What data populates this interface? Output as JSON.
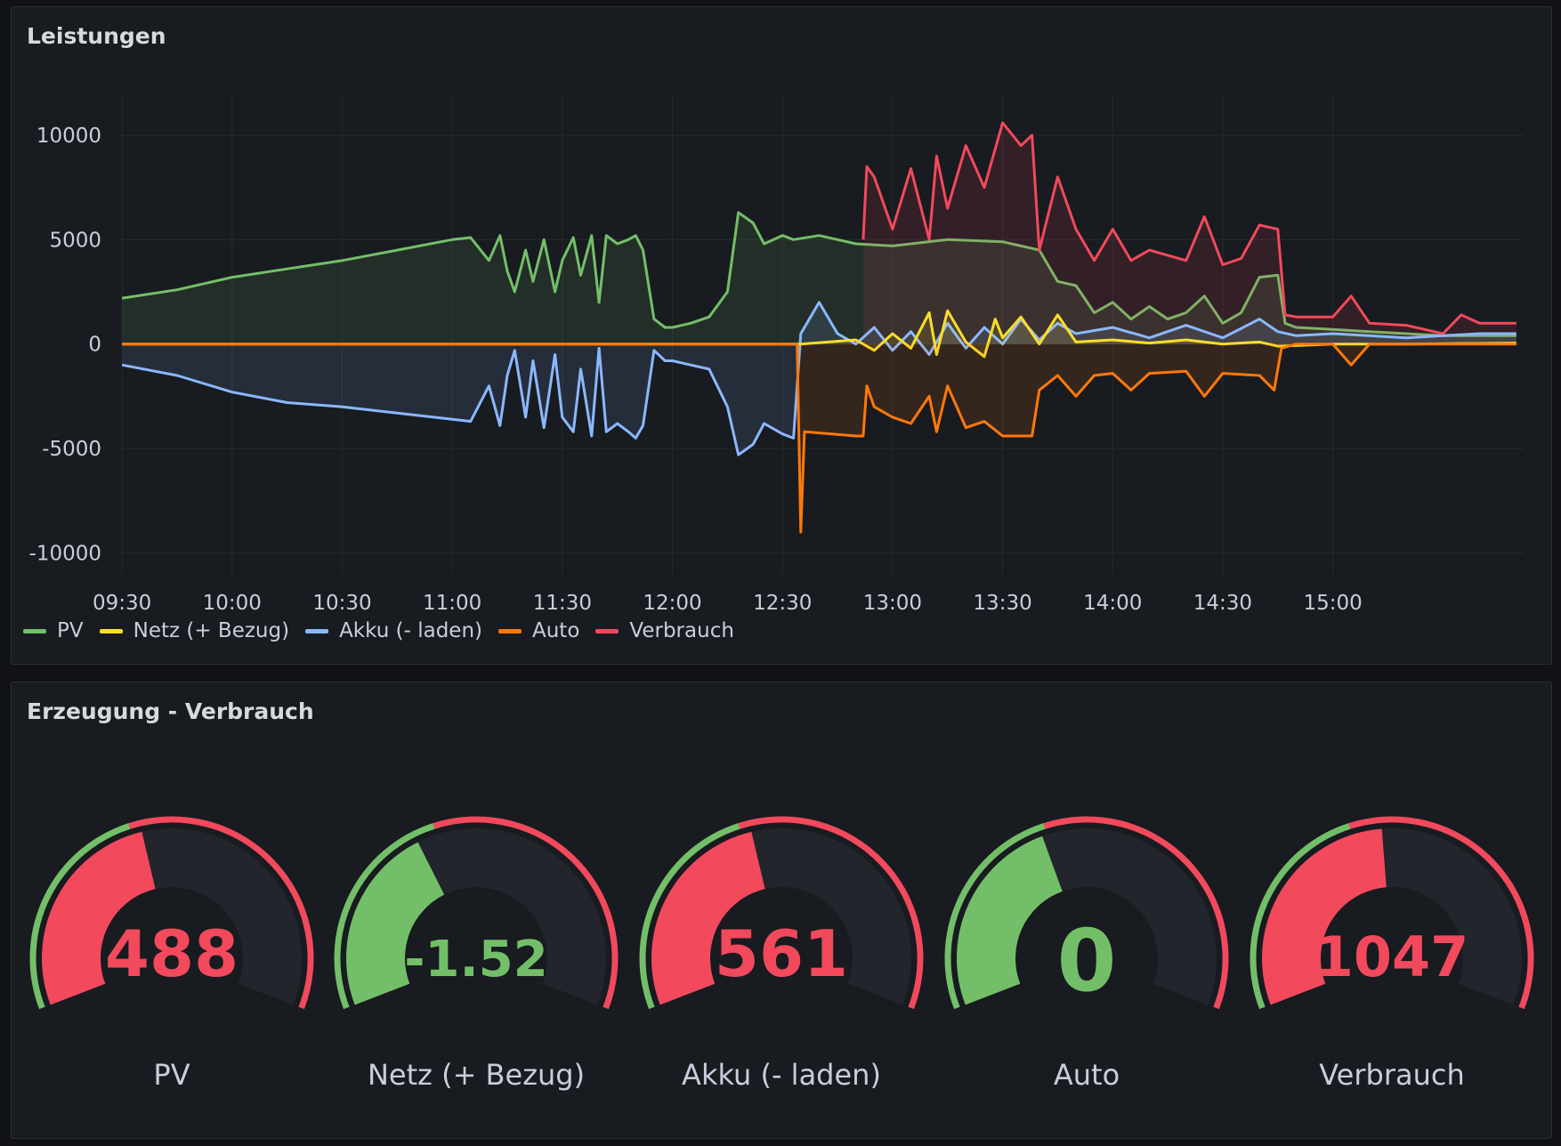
{
  "panels": {
    "top_title": "Leistungen",
    "bottom_title": "Erzeugung - Verbrauch"
  },
  "chart_data": [
    {
      "type": "area",
      "title": "Leistungen",
      "x_ticks": [
        "09:30",
        "10:00",
        "10:30",
        "11:00",
        "11:30",
        "12:00",
        "12:30",
        "13:00",
        "13:30",
        "14:00",
        "14:30",
        "15:00"
      ],
      "xlim": [
        "09:30",
        "15:50"
      ],
      "y_ticks": [
        10000,
        5000,
        0,
        -5000,
        -10000
      ],
      "ylim": [
        -10000,
        12000
      ],
      "grid": true,
      "legend_position": "bottom-left",
      "series": [
        {
          "name": "PV",
          "color": "#73bf69",
          "points": [
            [
              "09:30",
              2200
            ],
            [
              "09:45",
              2600
            ],
            [
              "10:00",
              3200
            ],
            [
              "10:15",
              3600
            ],
            [
              "10:30",
              4000
            ],
            [
              "10:45",
              4500
            ],
            [
              "11:00",
              5000
            ],
            [
              "11:05",
              5100
            ],
            [
              "11:10",
              4000
            ],
            [
              "11:13",
              5200
            ],
            [
              "11:15",
              3500
            ],
            [
              "11:17",
              2500
            ],
            [
              "11:20",
              4500
            ],
            [
              "11:22",
              3000
            ],
            [
              "11:25",
              5000
            ],
            [
              "11:28",
              2500
            ],
            [
              "11:30",
              4000
            ],
            [
              "11:33",
              5100
            ],
            [
              "11:35",
              3300
            ],
            [
              "11:38",
              5200
            ],
            [
              "11:40",
              2000
            ],
            [
              "11:42",
              5200
            ],
            [
              "11:45",
              4800
            ],
            [
              "11:48",
              5000
            ],
            [
              "11:50",
              5200
            ],
            [
              "11:52",
              4500
            ],
            [
              "11:55",
              1200
            ],
            [
              "11:58",
              800
            ],
            [
              "12:00",
              800
            ],
            [
              "12:05",
              1000
            ],
            [
              "12:10",
              1300
            ],
            [
              "12:15",
              2500
            ],
            [
              "12:18",
              6300
            ],
            [
              "12:22",
              5800
            ],
            [
              "12:25",
              4800
            ],
            [
              "12:30",
              5200
            ],
            [
              "12:33",
              5000
            ],
            [
              "12:40",
              5200
            ],
            [
              "12:45",
              5000
            ],
            [
              "12:50",
              4800
            ],
            [
              "13:00",
              4700
            ],
            [
              "13:15",
              5000
            ],
            [
              "13:30",
              4900
            ],
            [
              "13:40",
              4500
            ],
            [
              "13:45",
              3000
            ],
            [
              "13:50",
              2800
            ],
            [
              "13:55",
              1500
            ],
            [
              "14:00",
              2000
            ],
            [
              "14:05",
              1200
            ],
            [
              "14:10",
              1800
            ],
            [
              "14:15",
              1200
            ],
            [
              "14:20",
              1500
            ],
            [
              "14:25",
              2300
            ],
            [
              "14:30",
              1000
            ],
            [
              "14:35",
              1500
            ],
            [
              "14:40",
              3200
            ],
            [
              "14:45",
              3300
            ],
            [
              "14:47",
              1000
            ],
            [
              "14:50",
              800
            ],
            [
              "15:00",
              700
            ],
            [
              "15:10",
              600
            ],
            [
              "15:20",
              500
            ],
            [
              "15:30",
              400
            ],
            [
              "15:40",
              400
            ],
            [
              "15:50",
              400
            ]
          ]
        },
        {
          "name": "Netz (+ Bezug)",
          "color": "#fade2a",
          "points": [
            [
              "09:30",
              0
            ],
            [
              "12:30",
              0
            ],
            [
              "12:35",
              0
            ],
            [
              "12:50",
              200
            ],
            [
              "12:55",
              -300
            ],
            [
              "13:00",
              500
            ],
            [
              "13:05",
              -200
            ],
            [
              "13:10",
              1500
            ],
            [
              "13:12",
              -500
            ],
            [
              "13:15",
              1600
            ],
            [
              "13:20",
              100
            ],
            [
              "13:25",
              -600
            ],
            [
              "13:28",
              1200
            ],
            [
              "13:30",
              300
            ],
            [
              "13:35",
              1300
            ],
            [
              "13:40",
              0
            ],
            [
              "13:45",
              1400
            ],
            [
              "13:50",
              100
            ],
            [
              "14:00",
              200
            ],
            [
              "14:10",
              50
            ],
            [
              "14:20",
              200
            ],
            [
              "14:30",
              0
            ],
            [
              "14:40",
              100
            ],
            [
              "14:45",
              -100
            ],
            [
              "15:00",
              0
            ],
            [
              "15:20",
              0
            ],
            [
              "15:50",
              50
            ]
          ]
        },
        {
          "name": "Akku (- laden)",
          "color": "#8ab8ff",
          "points": [
            [
              "09:30",
              -1000
            ],
            [
              "09:45",
              -1500
            ],
            [
              "10:00",
              -2300
            ],
            [
              "10:15",
              -2800
            ],
            [
              "10:30",
              -3000
            ],
            [
              "10:45",
              -3300
            ],
            [
              "11:00",
              -3600
            ],
            [
              "11:05",
              -3700
            ],
            [
              "11:10",
              -2000
            ],
            [
              "11:13",
              -3900
            ],
            [
              "11:15",
              -1500
            ],
            [
              "11:17",
              -300
            ],
            [
              "11:20",
              -3500
            ],
            [
              "11:22",
              -800
            ],
            [
              "11:25",
              -4000
            ],
            [
              "11:28",
              -500
            ],
            [
              "11:30",
              -3500
            ],
            [
              "11:33",
              -4200
            ],
            [
              "11:35",
              -1200
            ],
            [
              "11:38",
              -4400
            ],
            [
              "11:40",
              -200
            ],
            [
              "11:42",
              -4200
            ],
            [
              "11:45",
              -3800
            ],
            [
              "11:48",
              -4200
            ],
            [
              "11:50",
              -4500
            ],
            [
              "11:52",
              -3900
            ],
            [
              "11:55",
              -300
            ],
            [
              "11:58",
              -800
            ],
            [
              "12:00",
              -800
            ],
            [
              "12:05",
              -1000
            ],
            [
              "12:10",
              -1200
            ],
            [
              "12:15",
              -3000
            ],
            [
              "12:18",
              -5300
            ],
            [
              "12:22",
              -4800
            ],
            [
              "12:25",
              -3800
            ],
            [
              "12:30",
              -4300
            ],
            [
              "12:33",
              -4500
            ],
            [
              "12:35",
              500
            ],
            [
              "12:40",
              2000
            ],
            [
              "12:45",
              500
            ],
            [
              "12:50",
              0
            ],
            [
              "12:55",
              800
            ],
            [
              "13:00",
              -300
            ],
            [
              "13:05",
              600
            ],
            [
              "13:10",
              -500
            ],
            [
              "13:15",
              1000
            ],
            [
              "13:20",
              -200
            ],
            [
              "13:25",
              800
            ],
            [
              "13:30",
              0
            ],
            [
              "13:35",
              1200
            ],
            [
              "13:40",
              200
            ],
            [
              "13:45",
              1000
            ],
            [
              "13:50",
              500
            ],
            [
              "14:00",
              800
            ],
            [
              "14:10",
              300
            ],
            [
              "14:20",
              900
            ],
            [
              "14:30",
              300
            ],
            [
              "14:40",
              1200
            ],
            [
              "14:45",
              600
            ],
            [
              "14:50",
              400
            ],
            [
              "15:00",
              500
            ],
            [
              "15:10",
              400
            ],
            [
              "15:20",
              300
            ],
            [
              "15:30",
              400
            ],
            [
              "15:40",
              500
            ],
            [
              "15:50",
              500
            ]
          ]
        },
        {
          "name": "Auto",
          "color": "#ff780a",
          "points": [
            [
              "09:30",
              0
            ],
            [
              "12:34",
              0
            ],
            [
              "12:35",
              -9000
            ],
            [
              "12:36",
              -4200
            ],
            [
              "12:50",
              -4400
            ],
            [
              "12:52",
              -4400
            ],
            [
              "12:53",
              -2000
            ],
            [
              "12:55",
              -3000
            ],
            [
              "13:00",
              -3500
            ],
            [
              "13:05",
              -3800
            ],
            [
              "13:10",
              -2500
            ],
            [
              "13:12",
              -4200
            ],
            [
              "13:15",
              -2000
            ],
            [
              "13:20",
              -4000
            ],
            [
              "13:25",
              -3700
            ],
            [
              "13:30",
              -4400
            ],
            [
              "13:38",
              -4400
            ],
            [
              "13:40",
              -2200
            ],
            [
              "13:45",
              -1500
            ],
            [
              "13:50",
              -2500
            ],
            [
              "13:55",
              -1500
            ],
            [
              "14:00",
              -1400
            ],
            [
              "14:05",
              -2200
            ],
            [
              "14:10",
              -1400
            ],
            [
              "14:20",
              -1300
            ],
            [
              "14:25",
              -2500
            ],
            [
              "14:30",
              -1400
            ],
            [
              "14:40",
              -1500
            ],
            [
              "14:44",
              -2200
            ],
            [
              "14:46",
              -200
            ],
            [
              "14:50",
              0
            ],
            [
              "15:00",
              0
            ],
            [
              "15:05",
              -1000
            ],
            [
              "15:10",
              0
            ],
            [
              "15:50",
              0
            ]
          ]
        },
        {
          "name": "Verbrauch",
          "color": "#f2495c",
          "points": [
            [
              "12:52",
              5000
            ],
            [
              "12:53",
              8500
            ],
            [
              "12:55",
              8000
            ],
            [
              "13:00",
              5500
            ],
            [
              "13:05",
              8400
            ],
            [
              "13:10",
              5000
            ],
            [
              "13:12",
              9000
            ],
            [
              "13:15",
              6500
            ],
            [
              "13:20",
              9500
            ],
            [
              "13:25",
              7500
            ],
            [
              "13:30",
              10600
            ],
            [
              "13:35",
              9500
            ],
            [
              "13:38",
              10000
            ],
            [
              "13:40",
              4500
            ],
            [
              "13:45",
              8000
            ],
            [
              "13:50",
              5500
            ],
            [
              "13:55",
              4000
            ],
            [
              "14:00",
              5500
            ],
            [
              "14:05",
              4000
            ],
            [
              "14:10",
              4500
            ],
            [
              "14:20",
              4000
            ],
            [
              "14:25",
              6100
            ],
            [
              "14:30",
              3800
            ],
            [
              "14:35",
              4100
            ],
            [
              "14:40",
              5700
            ],
            [
              "14:45",
              5500
            ],
            [
              "14:47",
              1400
            ],
            [
              "14:50",
              1300
            ],
            [
              "15:00",
              1300
            ],
            [
              "15:05",
              2300
            ],
            [
              "15:10",
              1000
            ],
            [
              "15:20",
              900
            ],
            [
              "15:30",
              500
            ],
            [
              "15:35",
              1400
            ],
            [
              "15:40",
              1000
            ],
            [
              "15:50",
              1000
            ]
          ]
        }
      ]
    },
    {
      "type": "gauge",
      "title": "Erzeugung - Verbrauch",
      "gauges": [
        {
          "label": "PV",
          "value": 488,
          "display": "488",
          "color": "#f2495c",
          "fill": 0.44
        },
        {
          "label": "Netz (+ Bezug)",
          "value": -1.52,
          "display": "-1.52",
          "color": "#73bf69",
          "fill": 0.38
        },
        {
          "label": "Akku (- laden)",
          "value": 561,
          "display": "561",
          "color": "#f2495c",
          "fill": 0.44
        },
        {
          "label": "Auto",
          "value": 0,
          "display": "0",
          "color": "#73bf69",
          "fill": 0.41
        },
        {
          "label": "Verbrauch",
          "value": 1047,
          "display": "1047",
          "color": "#f2495c",
          "fill": 0.48
        }
      ],
      "track_color": "#22252b",
      "threshold_colors": [
        "#73bf69",
        "#f2495c"
      ],
      "threshold_fraction": 0.42
    }
  ]
}
